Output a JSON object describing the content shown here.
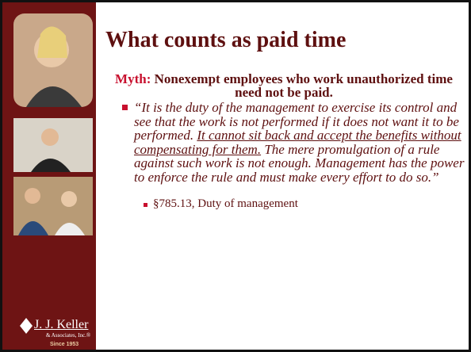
{
  "slide": {
    "title": "What counts as paid time",
    "myth": {
      "label": "Myth:",
      "text": "Nonexempt employees who work unauthorized time need not be paid."
    },
    "quote": {
      "before": "“It is the duty of the management to exercise its control and see that the work is not performed if it does not want it to be performed. ",
      "underlined": "It cannot sit back and accept the benefits without compensating for them.",
      "after": " The mere promulgation of a rule against such work is not enough. Management has the power to enforce the rule and must make every effort to do so.”"
    },
    "sub_bullet": "§785.13, Duty of management",
    "logo": {
      "name": "J. J. Keller",
      "sub": "& Associates, Inc.®",
      "since": "Since 1953"
    }
  }
}
